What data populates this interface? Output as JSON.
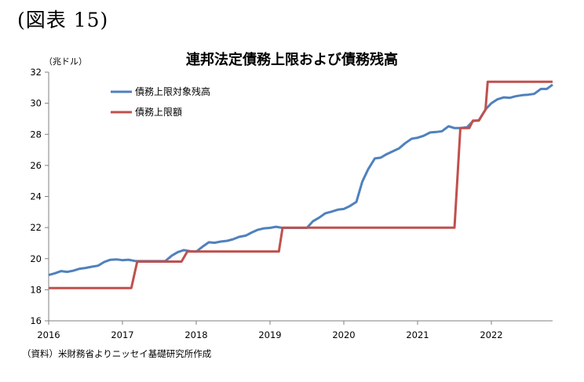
{
  "header": {
    "figure_label": "(図表 15)"
  },
  "footer": {
    "source": "（資料）米財務省よりニッセイ基礎研究所作成"
  },
  "colors": {
    "outstanding": "#4f81bd",
    "limit": "#c0504d",
    "axis": "#808080"
  },
  "chart_data": {
    "type": "line",
    "title": "連邦法定債務上限および債務残高",
    "unit": "（兆ドル）",
    "xlabel": "",
    "ylabel": "",
    "x_tick_labels": [
      "2016",
      "2017",
      "2018",
      "2019",
      "2020",
      "2021",
      "2022"
    ],
    "y_ticks": [
      16,
      18,
      20,
      22,
      24,
      26,
      28,
      30,
      32
    ],
    "xlim": [
      2016.0,
      2022.83
    ],
    "ylim": [
      16,
      32
    ],
    "legend_position": "top-left",
    "series": [
      {
        "name": "債務上限対象残高",
        "color": "#4f81bd",
        "x": [
          2016.0,
          2016.08,
          2016.17,
          2016.25,
          2016.33,
          2016.42,
          2016.5,
          2016.58,
          2016.67,
          2016.75,
          2016.83,
          2016.92,
          2017.0,
          2017.08,
          2017.17,
          2017.25,
          2017.33,
          2017.42,
          2017.5,
          2017.58,
          2017.67,
          2017.75,
          2017.83,
          2017.92,
          2018.0,
          2018.08,
          2018.17,
          2018.25,
          2018.33,
          2018.42,
          2018.5,
          2018.58,
          2018.67,
          2018.75,
          2018.83,
          2018.92,
          2019.0,
          2019.08,
          2019.17,
          2019.25,
          2019.33,
          2019.42,
          2019.5,
          2019.58,
          2019.67,
          2019.75,
          2019.83,
          2019.92,
          2020.0,
          2020.08,
          2020.17,
          2020.25,
          2020.33,
          2020.42,
          2020.5,
          2020.58,
          2020.67,
          2020.75,
          2020.83,
          2020.92,
          2021.0,
          2021.08,
          2021.17,
          2021.25,
          2021.33,
          2021.42,
          2021.5,
          2021.58,
          2021.67,
          2021.75,
          2021.83,
          2021.92,
          2022.0,
          2022.08,
          2022.17,
          2022.25,
          2022.33,
          2022.42,
          2022.5,
          2022.58,
          2022.67,
          2022.75,
          2022.83
        ],
        "values": [
          18.95,
          19.05,
          19.2,
          19.15,
          19.22,
          19.35,
          19.4,
          19.48,
          19.55,
          19.78,
          19.92,
          19.95,
          19.9,
          19.93,
          19.85,
          19.84,
          19.84,
          19.84,
          19.84,
          19.84,
          20.2,
          20.42,
          20.55,
          20.48,
          20.45,
          20.75,
          21.05,
          21.02,
          21.1,
          21.15,
          21.25,
          21.4,
          21.48,
          21.68,
          21.85,
          21.95,
          21.98,
          22.05,
          21.98,
          21.98,
          21.98,
          21.98,
          21.98,
          22.4,
          22.65,
          22.92,
          23.02,
          23.15,
          23.2,
          23.38,
          23.65,
          24.95,
          25.75,
          26.45,
          26.5,
          26.72,
          26.92,
          27.1,
          27.42,
          27.72,
          27.78,
          27.9,
          28.12,
          28.15,
          28.2,
          28.52,
          28.4,
          28.4,
          28.45,
          28.85,
          28.9,
          29.6,
          30.0,
          30.25,
          30.38,
          30.35,
          30.45,
          30.52,
          30.55,
          30.6,
          30.92,
          30.92,
          31.2
        ]
      },
      {
        "name": "債務上限額",
        "color": "#c0504d",
        "x": [
          2016.0,
          2017.12,
          2017.2,
          2017.8,
          2017.88,
          2019.12,
          2019.17,
          2021.5,
          2021.58,
          2021.67,
          2021.7,
          2021.75,
          2021.78,
          2021.83,
          2021.92,
          2021.95,
          2022.83
        ],
        "values": [
          18.11,
          18.11,
          19.81,
          19.81,
          20.46,
          20.46,
          21.99,
          21.99,
          28.4,
          28.4,
          28.4,
          28.88,
          28.88,
          28.88,
          29.58,
          31.38,
          31.38
        ]
      }
    ]
  }
}
